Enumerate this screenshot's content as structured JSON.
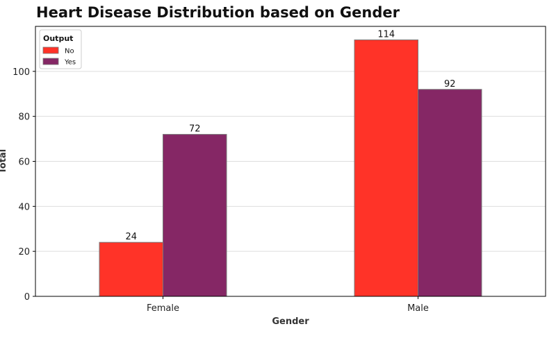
{
  "chart_data": {
    "type": "bar",
    "title": "Heart Disease Distribution based on Gender",
    "xlabel": "Gender",
    "ylabel": "Total",
    "categories": [
      "Female",
      "Male"
    ],
    "series": [
      {
        "name": "No",
        "values": [
          24,
          114
        ],
        "color": "#ff3328"
      },
      {
        "name": "Yes",
        "values": [
          72,
          92
        ],
        "color": "#852765"
      }
    ],
    "ylim": [
      0,
      120
    ],
    "yticks": [
      0,
      20,
      40,
      60,
      80,
      100
    ],
    "grid": "horizontal",
    "legend": {
      "title": "Output",
      "position": "top-left"
    }
  }
}
